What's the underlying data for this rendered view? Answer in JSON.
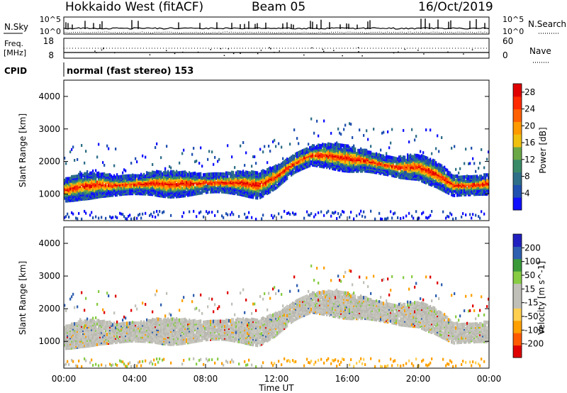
{
  "header": {
    "station": "Hokkaido West (fitACF)",
    "beam": "Beam 05",
    "date": "16/Oct/2019"
  },
  "noise_panel": {
    "left_label": "N.Sky",
    "right_label": "N.Search",
    "top_tick": "10^5",
    "bottom_tick": "10^0"
  },
  "freq_panel": {
    "label_line1": "Freq.",
    "label_line2": "[MHz]",
    "left_ticks": [
      "18",
      "8"
    ],
    "right_label": "Nave",
    "right_ticks": [
      "60",
      "0"
    ]
  },
  "cpid_panel": {
    "label": "CPID",
    "text": "normal (fast stereo) 153"
  },
  "chart_data": [
    {
      "type": "heatmap",
      "title": "",
      "ylabel": "Slant Range [km]",
      "xlabel": "",
      "ylim": [
        180,
        4500
      ],
      "yticks": [
        "1000",
        "2000",
        "3000",
        "4000"
      ],
      "colorbar_label": "Power [dB]",
      "colorbar_ticks": [
        "4",
        "8",
        "12",
        "16",
        "20",
        "24",
        "28"
      ],
      "colorbar_range": [
        0,
        30
      ],
      "palette": [
        "#1010ff",
        "#2050b0",
        "#2f6f88",
        "#3a8a68",
        "#6aa848",
        "#f0c010",
        "#ff9a00",
        "#ff6000",
        "#ff2a00",
        "#e00000"
      ],
      "echo_band_center_km": [
        [
          0,
          1100
        ],
        [
          1,
          1220
        ],
        [
          2,
          1270
        ],
        [
          3,
          1250
        ],
        [
          4,
          1280
        ],
        [
          5,
          1320
        ],
        [
          6,
          1290
        ],
        [
          7,
          1300
        ],
        [
          8,
          1320
        ],
        [
          9,
          1340
        ],
        [
          10,
          1330
        ],
        [
          11,
          1250
        ],
        [
          12,
          1520
        ],
        [
          13,
          1920
        ],
        [
          14,
          2180
        ],
        [
          15,
          2160
        ],
        [
          16,
          2080
        ],
        [
          17,
          2020
        ],
        [
          18,
          1880
        ],
        [
          19,
          1800
        ],
        [
          20,
          1820
        ],
        [
          21,
          1600
        ],
        [
          22,
          1250
        ],
        [
          23,
          1240
        ],
        [
          24,
          1300
        ]
      ],
      "ground_scatter_after_hour": 11.5
    },
    {
      "type": "heatmap",
      "title": "",
      "ylabel": "Slant Range [km]",
      "xlabel": "Time UT",
      "ylim": [
        180,
        4500
      ],
      "yticks": [
        "1000",
        "2000",
        "3000",
        "4000"
      ],
      "xticks": [
        "00:00",
        "04:00",
        "08:00",
        "12:00",
        "16:00",
        "20:00",
        "00:00"
      ],
      "x_hours": [
        0,
        4,
        8,
        12,
        16,
        20,
        24
      ],
      "colorbar_label": "Velocity [m s^-1]",
      "colorbar_ticks": [
        "200",
        "100",
        "50",
        "15",
        "-15",
        "-50",
        "-100",
        "-200"
      ],
      "colorbar_range": [
        -250,
        250
      ],
      "palette": [
        "#e00000",
        "#ff5a00",
        "#ffa000",
        "#ffcf50",
        "#c0c0b8",
        "#c0c0b8",
        "#88cc44",
        "#3a9a3a",
        "#2f5fb0",
        "#2020c0"
      ],
      "dominant_value_ms": 0
    }
  ],
  "colors": {
    "frame": "#000000",
    "background": "#ffffff"
  }
}
